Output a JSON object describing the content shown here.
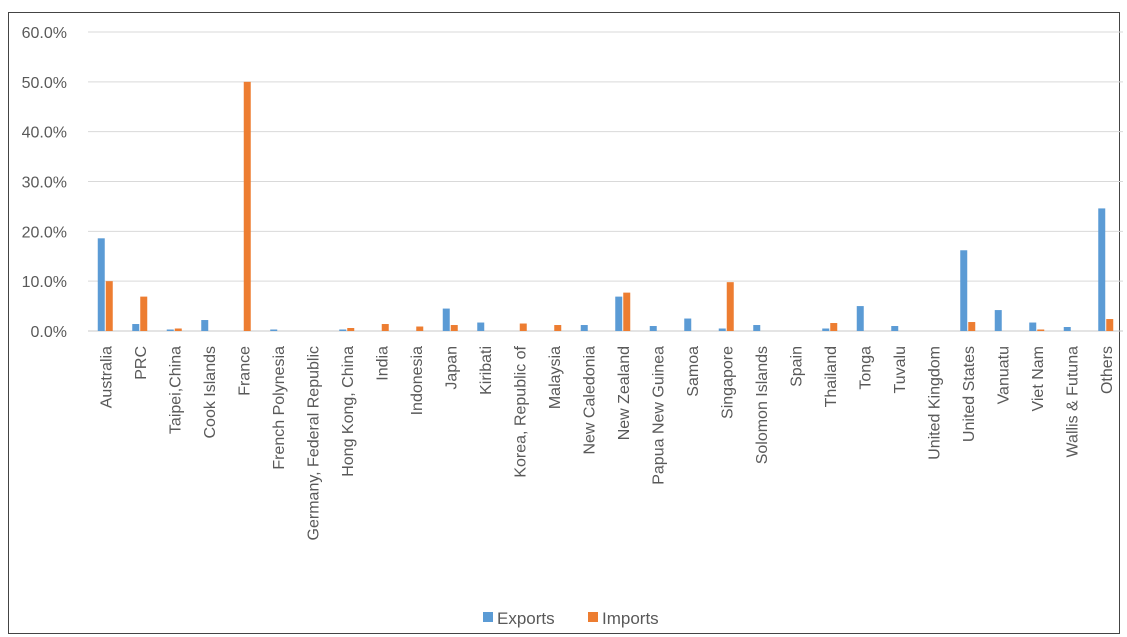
{
  "chart_data": {
    "type": "bar",
    "title": "",
    "xlabel": "",
    "ylabel": "",
    "ylim": [
      0,
      60
    ],
    "y_tick_labels": [
      "0.0%",
      "10.0%",
      "20.0%",
      "30.0%",
      "40.0%",
      "50.0%",
      "60.0%"
    ],
    "y_ticks": [
      0,
      10,
      20,
      30,
      40,
      50,
      60
    ],
    "grid": true,
    "legend_position": "bottom",
    "categories": [
      "Australia",
      "PRC",
      "Taipei,China",
      "Cook Islands",
      "France",
      "French Polynesia",
      "Germany, Federal Republic",
      "Hong Kong, China",
      "India",
      "Indonesia",
      "Japan",
      "Kiribati",
      "Korea, Republic of",
      "Malaysia",
      "New Caledonia",
      "New Zealand",
      "Papua New Guinea",
      "Samoa",
      "Singapore",
      "Solomon Islands",
      "Spain",
      "Thailand",
      "Tonga",
      "Tuvalu",
      "United Kingdom",
      "United States",
      "Vanuatu",
      "Viet Nam",
      "Wallis & Futuna",
      "Others"
    ],
    "series": [
      {
        "name": "Exports",
        "color": "#5B9BD5",
        "values": [
          18.6,
          1.4,
          0.3,
          2.2,
          0.0,
          0.3,
          0.0,
          0.3,
          0.0,
          0.0,
          4.5,
          1.7,
          0.0,
          0.0,
          1.2,
          6.9,
          1.0,
          2.5,
          0.5,
          1.2,
          0.0,
          0.5,
          5.0,
          1.0,
          0.0,
          16.2,
          4.2,
          1.7,
          0.8,
          24.6
        ]
      },
      {
        "name": "Imports",
        "color": "#ED7D31",
        "values": [
          10.0,
          6.9,
          0.5,
          0.0,
          50.0,
          0.0,
          0.0,
          0.6,
          1.4,
          0.9,
          1.2,
          0.0,
          1.5,
          1.2,
          0.0,
          7.7,
          0.0,
          0.0,
          9.8,
          0.0,
          0.0,
          1.6,
          0.0,
          0.0,
          0.0,
          1.8,
          0.0,
          0.3,
          0.0,
          2.4
        ]
      }
    ]
  }
}
